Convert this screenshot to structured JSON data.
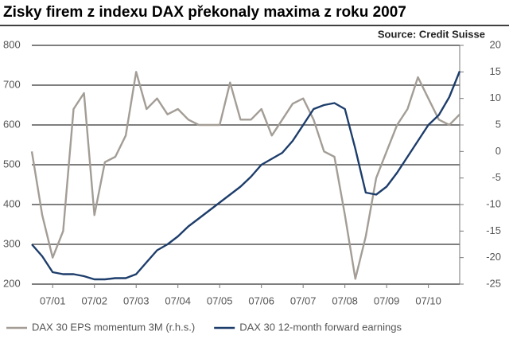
{
  "chart_data": {
    "type": "line",
    "title": "Zisky firem z indexu DAX překonaly maxima z roku 2007",
    "source": "Source: Credit Suisse",
    "x": [
      "2001-01",
      "2001-04",
      "2001-07",
      "2001-10",
      "2002-01",
      "2002-04",
      "2002-07",
      "2002-10",
      "2003-01",
      "2003-04",
      "2003-07",
      "2003-10",
      "2004-01",
      "2004-04",
      "2004-07",
      "2004-10",
      "2005-01",
      "2005-04",
      "2005-07",
      "2005-10",
      "2006-01",
      "2006-04",
      "2006-07",
      "2006-10",
      "2007-01",
      "2007-04",
      "2007-07",
      "2007-10",
      "2008-01",
      "2008-04",
      "2008-07",
      "2008-10",
      "2009-01",
      "2009-04",
      "2009-07",
      "2009-10",
      "2010-01",
      "2010-04",
      "2010-07",
      "2010-10",
      "2011-01",
      "2011-04"
    ],
    "xlim": [
      "2001-01",
      "2011-04"
    ],
    "xticks": [
      {
        "value": "2001-07",
        "label": "07/01"
      },
      {
        "value": "2002-07",
        "label": "07/02"
      },
      {
        "value": "2003-07",
        "label": "07/03"
      },
      {
        "value": "2004-07",
        "label": "07/04"
      },
      {
        "value": "2005-07",
        "label": "07/05"
      },
      {
        "value": "2006-07",
        "label": "07/06"
      },
      {
        "value": "2007-07",
        "label": "07/07"
      },
      {
        "value": "2008-07",
        "label": "07/08"
      },
      {
        "value": "2009-07",
        "label": "07/09"
      },
      {
        "value": "2010-07",
        "label": "07/10"
      }
    ],
    "ylim": [
      200,
      800
    ],
    "yticks": [
      200,
      300,
      400,
      500,
      600,
      700,
      800
    ],
    "y2lim": [
      -25,
      20
    ],
    "y2ticks": [
      -25,
      -20,
      -15,
      -10,
      -5,
      0,
      5,
      10,
      15,
      20
    ],
    "grid": true,
    "legend": "bottom",
    "series": [
      {
        "name": "DAX 30 EPS momentum 3M (r.h.s.)",
        "color": "#a39d96",
        "axis": "y2",
        "values": [
          0,
          -12,
          -20,
          -15,
          8,
          11,
          -12,
          -2,
          -1,
          3,
          15,
          8,
          10,
          7,
          8,
          6,
          5,
          5,
          5,
          13,
          6,
          6,
          8,
          3,
          6,
          9,
          10,
          6,
          0,
          -1,
          -12,
          -24,
          -16,
          -5,
          0,
          5,
          8,
          14,
          10,
          6,
          5,
          7
        ]
      },
      {
        "name": "DAX 30 12-month forward earnings",
        "color": "#1d3d6b",
        "axis": "y",
        "values": [
          300,
          270,
          230,
          225,
          225,
          220,
          212,
          212,
          215,
          215,
          225,
          255,
          285,
          300,
          320,
          345,
          365,
          385,
          405,
          425,
          445,
          470,
          500,
          515,
          530,
          560,
          600,
          640,
          650,
          655,
          640,
          540,
          430,
          425,
          445,
          480,
          520,
          560,
          600,
          625,
          670,
          735
        ]
      }
    ]
  }
}
